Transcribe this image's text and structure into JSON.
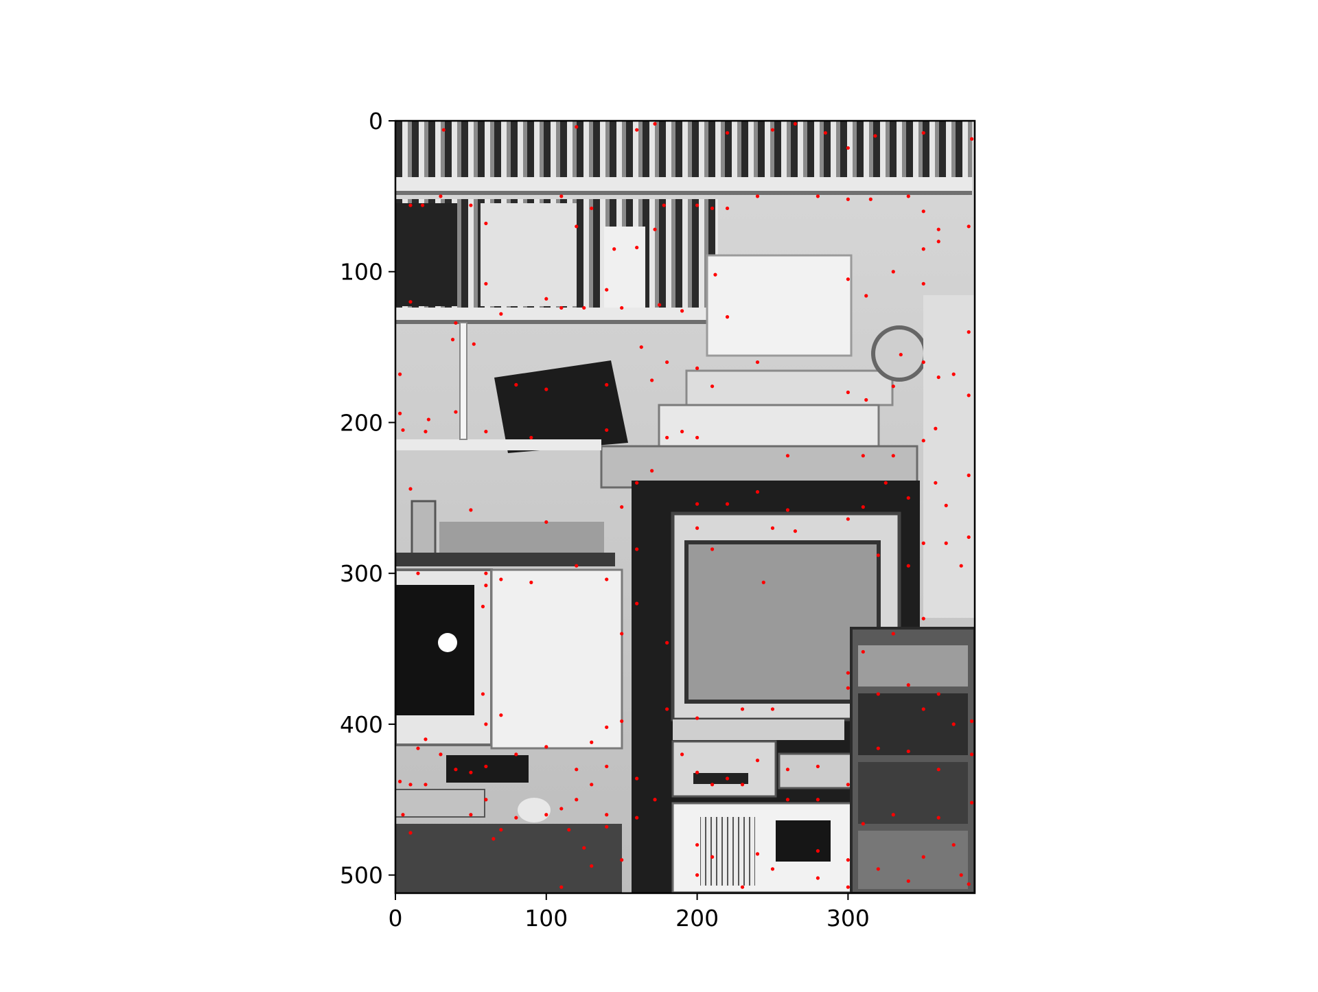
{
  "chart_data": {
    "type": "scatter",
    "title": "",
    "xlabel": "",
    "ylabel": "",
    "image_description": "Grayscale photo of an office corner with bookshelves, CRT monitors, video rack equipment and a computer desk, overlaid with red keypoint markers",
    "xlim": [
      0,
      384
    ],
    "ylim": [
      512,
      0
    ],
    "x_ticks": [
      0,
      100,
      200,
      300
    ],
    "y_ticks": [
      0,
      100,
      200,
      300,
      400,
      500
    ],
    "x_tick_labels": [
      "0",
      "100",
      "200",
      "300"
    ],
    "y_tick_labels": [
      "0",
      "100",
      "200",
      "300",
      "400",
      "500"
    ],
    "grid": false,
    "series": [
      {
        "name": "keypoints",
        "color": "#ff0000",
        "points": [
          [
            32,
            6
          ],
          [
            120,
            4
          ],
          [
            160,
            6
          ],
          [
            172,
            2
          ],
          [
            220,
            8
          ],
          [
            250,
            6
          ],
          [
            265,
            2
          ],
          [
            285,
            8
          ],
          [
            300,
            18
          ],
          [
            318,
            10
          ],
          [
            350,
            8
          ],
          [
            382,
            12
          ],
          [
            10,
            56
          ],
          [
            18,
            56
          ],
          [
            30,
            50
          ],
          [
            50,
            56
          ],
          [
            60,
            68
          ],
          [
            110,
            50
          ],
          [
            120,
            70
          ],
          [
            130,
            58
          ],
          [
            145,
            85
          ],
          [
            160,
            84
          ],
          [
            172,
            72
          ],
          [
            178,
            56
          ],
          [
            200,
            56
          ],
          [
            210,
            58
          ],
          [
            220,
            58
          ],
          [
            240,
            50
          ],
          [
            280,
            50
          ],
          [
            300,
            52
          ],
          [
            315,
            52
          ],
          [
            340,
            50
          ],
          [
            350,
            60
          ],
          [
            360,
            72
          ],
          [
            380,
            70
          ],
          [
            10,
            120
          ],
          [
            60,
            108
          ],
          [
            70,
            128
          ],
          [
            100,
            118
          ],
          [
            110,
            124
          ],
          [
            125,
            124
          ],
          [
            140,
            112
          ],
          [
            150,
            124
          ],
          [
            175,
            122
          ],
          [
            190,
            126
          ],
          [
            212,
            102
          ],
          [
            300,
            105
          ],
          [
            312,
            116
          ],
          [
            330,
            100
          ],
          [
            350,
            108
          ],
          [
            350,
            85
          ],
          [
            360,
            80
          ],
          [
            3,
            168
          ],
          [
            40,
            134
          ],
          [
            52,
            148
          ],
          [
            38,
            145
          ],
          [
            80,
            175
          ],
          [
            100,
            178
          ],
          [
            140,
            175
          ],
          [
            163,
            150
          ],
          [
            170,
            172
          ],
          [
            180,
            160
          ],
          [
            200,
            164
          ],
          [
            210,
            176
          ],
          [
            220,
            130
          ],
          [
            240,
            160
          ],
          [
            300,
            180
          ],
          [
            312,
            185
          ],
          [
            330,
            176
          ],
          [
            335,
            155
          ],
          [
            350,
            160
          ],
          [
            360,
            170
          ],
          [
            370,
            168
          ],
          [
            380,
            140
          ],
          [
            380,
            182
          ],
          [
            3,
            194
          ],
          [
            5,
            205
          ],
          [
            22,
            198
          ],
          [
            20,
            206
          ],
          [
            40,
            193
          ],
          [
            60,
            206
          ],
          [
            90,
            210
          ],
          [
            140,
            205
          ],
          [
            180,
            210
          ],
          [
            190,
            206
          ],
          [
            200,
            210
          ],
          [
            260,
            222
          ],
          [
            310,
            222
          ],
          [
            330,
            222
          ],
          [
            350,
            212
          ],
          [
            358,
            204
          ],
          [
            10,
            244
          ],
          [
            50,
            258
          ],
          [
            100,
            266
          ],
          [
            150,
            256
          ],
          [
            160,
            240
          ],
          [
            170,
            232
          ],
          [
            200,
            254
          ],
          [
            220,
            254
          ],
          [
            240,
            246
          ],
          [
            260,
            258
          ],
          [
            310,
            256
          ],
          [
            325,
            240
          ],
          [
            340,
            250
          ],
          [
            358,
            240
          ],
          [
            365,
            255
          ],
          [
            380,
            235
          ],
          [
            380,
            276
          ],
          [
            15,
            300
          ],
          [
            60,
            300
          ],
          [
            70,
            304
          ],
          [
            90,
            306
          ],
          [
            120,
            295
          ],
          [
            140,
            304
          ],
          [
            160,
            284
          ],
          [
            200,
            270
          ],
          [
            210,
            284
          ],
          [
            250,
            270
          ],
          [
            265,
            272
          ],
          [
            300,
            264
          ],
          [
            320,
            288
          ],
          [
            340,
            295
          ],
          [
            350,
            280
          ],
          [
            365,
            280
          ],
          [
            375,
            295
          ],
          [
            58,
            322
          ],
          [
            60,
            308
          ],
          [
            150,
            340
          ],
          [
            160,
            320
          ],
          [
            180,
            346
          ],
          [
            244,
            306
          ],
          [
            300,
            366
          ],
          [
            310,
            352
          ],
          [
            330,
            340
          ],
          [
            350,
            330
          ],
          [
            58,
            380
          ],
          [
            60,
            400
          ],
          [
            70,
            394
          ],
          [
            140,
            402
          ],
          [
            150,
            398
          ],
          [
            180,
            390
          ],
          [
            200,
            396
          ],
          [
            230,
            390
          ],
          [
            250,
            390
          ],
          [
            300,
            376
          ],
          [
            320,
            380
          ],
          [
            340,
            374
          ],
          [
            350,
            390
          ],
          [
            360,
            380
          ],
          [
            370,
            400
          ],
          [
            382,
            398
          ],
          [
            15,
            416
          ],
          [
            20,
            410
          ],
          [
            30,
            420
          ],
          [
            40,
            430
          ],
          [
            50,
            432
          ],
          [
            60,
            428
          ],
          [
            80,
            420
          ],
          [
            100,
            415
          ],
          [
            120,
            430
          ],
          [
            130,
            412
          ],
          [
            140,
            428
          ],
          [
            160,
            436
          ],
          [
            190,
            420
          ],
          [
            200,
            432
          ],
          [
            220,
            436
          ],
          [
            240,
            424
          ],
          [
            260,
            430
          ],
          [
            280,
            428
          ],
          [
            300,
            440
          ],
          [
            320,
            416
          ],
          [
            340,
            418
          ],
          [
            360,
            430
          ],
          [
            382,
            420
          ],
          [
            3,
            438
          ],
          [
            10,
            440
          ],
          [
            20,
            440
          ],
          [
            50,
            460
          ],
          [
            60,
            450
          ],
          [
            70,
            470
          ],
          [
            80,
            462
          ],
          [
            100,
            460
          ],
          [
            110,
            456
          ],
          [
            120,
            450
          ],
          [
            130,
            440
          ],
          [
            140,
            460
          ],
          [
            160,
            462
          ],
          [
            172,
            450
          ],
          [
            210,
            440
          ],
          [
            230,
            440
          ],
          [
            260,
            450
          ],
          [
            280,
            450
          ],
          [
            310,
            466
          ],
          [
            330,
            460
          ],
          [
            360,
            462
          ],
          [
            382,
            452
          ],
          [
            5,
            460
          ],
          [
            10,
            472
          ],
          [
            65,
            476
          ],
          [
            115,
            470
          ],
          [
            125,
            482
          ],
          [
            140,
            468
          ],
          [
            200,
            480
          ],
          [
            210,
            488
          ],
          [
            240,
            486
          ],
          [
            280,
            484
          ],
          [
            300,
            490
          ],
          [
            320,
            496
          ],
          [
            350,
            488
          ],
          [
            370,
            480
          ],
          [
            110,
            508
          ],
          [
            130,
            494
          ],
          [
            150,
            490
          ],
          [
            200,
            500
          ],
          [
            230,
            508
          ],
          [
            250,
            496
          ],
          [
            280,
            502
          ],
          [
            300,
            508
          ],
          [
            340,
            504
          ],
          [
            375,
            500
          ],
          [
            380,
            506
          ]
        ]
      }
    ]
  }
}
